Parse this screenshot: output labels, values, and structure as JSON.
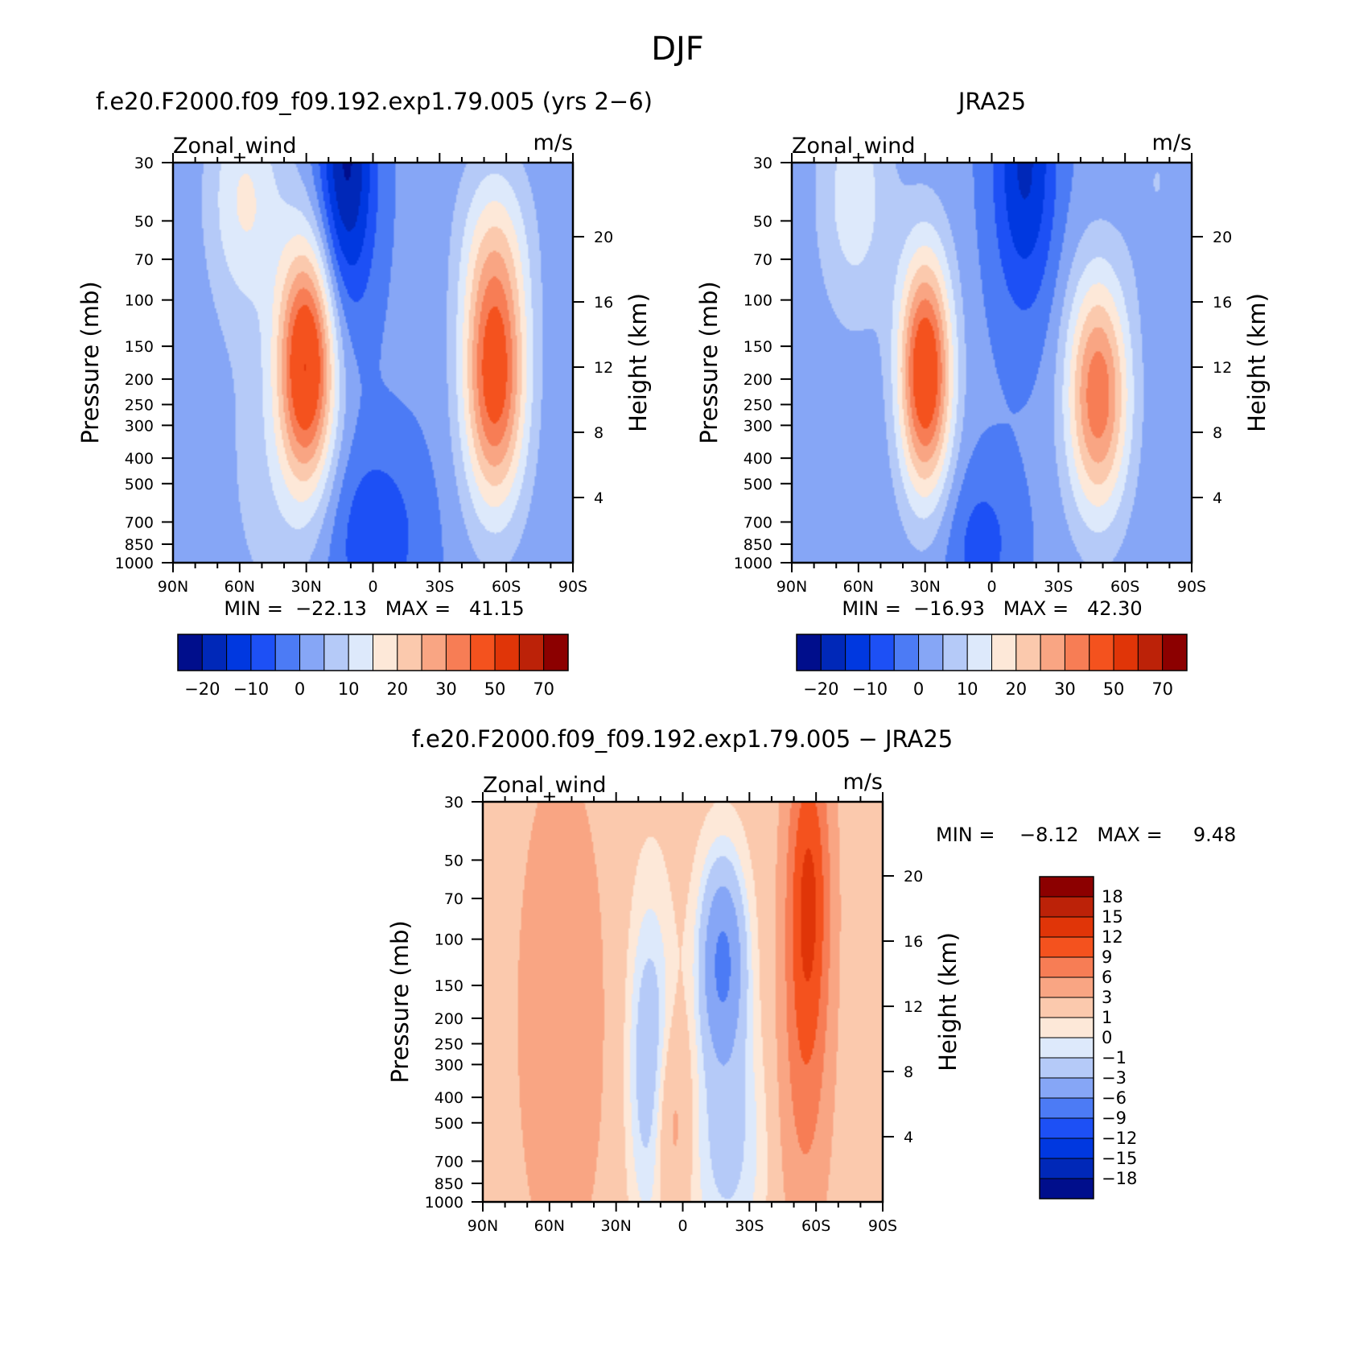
{
  "figure_title": "DJF",
  "chart_data": [
    {
      "type": "heatmap",
      "title": "f.e20.F2000.f09_f09.192.exp1.79.005 (yrs 2−6)",
      "variable": "Zonal_wind",
      "units": "m/s",
      "xlabel": "",
      "ylabel": "Pressure (mb)",
      "ylabel_right": "Height (km)",
      "x_ticks": [
        "90N",
        "60N",
        "30N",
        "0",
        "30S",
        "60S",
        "90S"
      ],
      "y_ticks": [
        "30",
        "50",
        "70",
        "100",
        "150",
        "200",
        "250",
        "300",
        "400",
        "500",
        "700",
        "850",
        "1000"
      ],
      "y_ticks_right": [
        "4",
        "8",
        "12",
        "16",
        "20"
      ],
      "y_scale": "log",
      "ylim": [
        1000,
        30
      ],
      "min_label": "MIN =  −22.13   MAX =   41.15",
      "min": -22.13,
      "max": 41.15,
      "colorbar_labels": [
        "−20",
        "−10",
        "0",
        "10",
        "20",
        "30",
        "50",
        "70"
      ],
      "jets": [
        {
          "lat": 30,
          "pressure": 175,
          "value": 41.15
        },
        {
          "lat": -55,
          "pressure": 200,
          "value": 38
        }
      ],
      "min_location": {
        "lat": 12,
        "pressure": 30,
        "value": -22.13
      }
    },
    {
      "type": "heatmap",
      "title": "JRA25",
      "variable": "Zonal_wind",
      "units": "m/s",
      "xlabel": "",
      "ylabel": "Pressure (mb)",
      "ylabel_right": "Height (km)",
      "x_ticks": [
        "90N",
        "60N",
        "30N",
        "0",
        "30S",
        "60S",
        "90S"
      ],
      "y_ticks": [
        "30",
        "50",
        "70",
        "100",
        "150",
        "200",
        "250",
        "300",
        "400",
        "500",
        "700",
        "850",
        "1000"
      ],
      "y_ticks_right": [
        "4",
        "8",
        "12",
        "16",
        "20"
      ],
      "y_scale": "log",
      "ylim": [
        1000,
        30
      ],
      "min_label": "MIN =  −16.93   MAX =   42.30",
      "min": -16.93,
      "max": 42.3,
      "colorbar_labels": [
        "−20",
        "−10",
        "0",
        "10",
        "20",
        "30",
        "50",
        "70"
      ],
      "jets": [
        {
          "lat": 30,
          "pressure": 190,
          "value": 42.3
        },
        {
          "lat": -48,
          "pressure": 230,
          "value": 33
        }
      ],
      "min_location": {
        "lat": -15,
        "pressure": 30,
        "value": -16.93
      }
    },
    {
      "type": "heatmap",
      "title": "f.e20.F2000.f09_f09.192.exp1.79.005 − JRA25",
      "variable": "Zonal_wind",
      "units": "m/s",
      "xlabel": "",
      "ylabel": "Pressure (mb)",
      "ylabel_right": "Height (km)",
      "x_ticks": [
        "90N",
        "60N",
        "30N",
        "0",
        "30S",
        "60S",
        "90S"
      ],
      "y_ticks": [
        "30",
        "50",
        "70",
        "100",
        "150",
        "200",
        "250",
        "300",
        "400",
        "500",
        "700",
        "850",
        "1000"
      ],
      "y_ticks_right": [
        "4",
        "8",
        "12",
        "16",
        "20"
      ],
      "y_scale": "log",
      "ylim": [
        1000,
        30
      ],
      "min_label": "MIN =    −8.12   MAX =     9.48",
      "min": -8.12,
      "max": 9.48,
      "colorbar_labels": [
        "18",
        "15",
        "12",
        "9",
        "6",
        "3",
        "1",
        "0",
        "−1",
        "−3",
        "−6",
        "−9",
        "−12",
        "−15",
        "−18"
      ],
      "features": [
        {
          "lat": -57,
          "pressure": 60,
          "value": 9.48
        },
        {
          "lat": -18,
          "pressure": 120,
          "value": -8.12
        }
      ]
    }
  ],
  "colormaps": {
    "full_field": [
      "#000e8c",
      "#0028b8",
      "#0038e0",
      "#1d50f5",
      "#4c7bf5",
      "#86a6f6",
      "#b5caf8",
      "#dde9fb",
      "#fde8d8",
      "#fbc9ad",
      "#f9a583",
      "#f77d55",
      "#f4521e",
      "#e03508",
      "#bc2208",
      "#8c0000"
    ],
    "full_field_levels": [
      -25,
      -20,
      -15,
      -10,
      -5,
      0,
      5,
      10,
      15,
      20,
      25,
      30,
      40,
      50,
      60,
      70
    ],
    "difference": [
      "#8c0000",
      "#bc2208",
      "#e03508",
      "#f4521e",
      "#f77d55",
      "#f9a583",
      "#fbc9ad",
      "#fde8d8",
      "#dde9fb",
      "#b5caf8",
      "#86a6f6",
      "#4c7bf5",
      "#1d50f5",
      "#0038e0",
      "#0028b8",
      "#000e8c"
    ],
    "difference_levels": [
      18,
      15,
      12,
      9,
      6,
      3,
      1,
      0,
      -1,
      -3,
      -6,
      -9,
      -12,
      -15,
      -18
    ]
  }
}
